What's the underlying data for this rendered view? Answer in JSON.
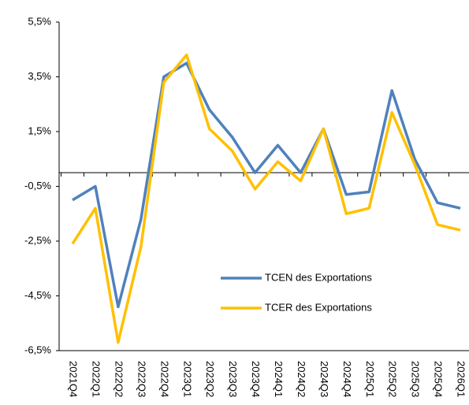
{
  "chart_data": {
    "type": "line",
    "categories": [
      "2021Q4",
      "2022Q1",
      "2022Q2",
      "2022Q3",
      "2022Q4",
      "2023Q1",
      "2023Q2",
      "2023Q3",
      "2023Q4",
      "2024Q1",
      "2024Q2",
      "2024Q3",
      "2024Q4",
      "2025Q1",
      "2025Q2",
      "2025Q3",
      "2025Q4",
      "2026Q1"
    ],
    "series": [
      {
        "name": "TCEN des Exportations",
        "color": "#4f81bd",
        "values": [
          -1.0,
          -0.5,
          -4.9,
          -1.7,
          3.5,
          4.0,
          2.3,
          1.3,
          0.0,
          1.0,
          0.0,
          1.6,
          -0.8,
          -0.7,
          3.0,
          0.5,
          -1.1,
          -1.3
        ]
      },
      {
        "name": "TCER des Exportations",
        "color": "#ffc000",
        "values": [
          -2.6,
          -1.3,
          -6.2,
          -2.7,
          3.3,
          4.3,
          1.6,
          0.8,
          -0.6,
          0.4,
          -0.3,
          1.6,
          -1.5,
          -1.3,
          2.2,
          0.3,
          -1.9,
          -2.1
        ]
      }
    ],
    "ylim": [
      -6.5,
      5.5
    ],
    "yticks": [
      {
        "value": -6.5,
        "label": "-6,5%"
      },
      {
        "value": -4.5,
        "label": "-4,5%"
      },
      {
        "value": -2.5,
        "label": "-2,5%"
      },
      {
        "value": -0.5,
        "label": "-0,5%"
      },
      {
        "value": 1.5,
        "label": "1,5%"
      },
      {
        "value": 3.5,
        "label": "3,5%"
      },
      {
        "value": 5.5,
        "label": "5,5%"
      }
    ],
    "grid": false,
    "legend": "center"
  }
}
